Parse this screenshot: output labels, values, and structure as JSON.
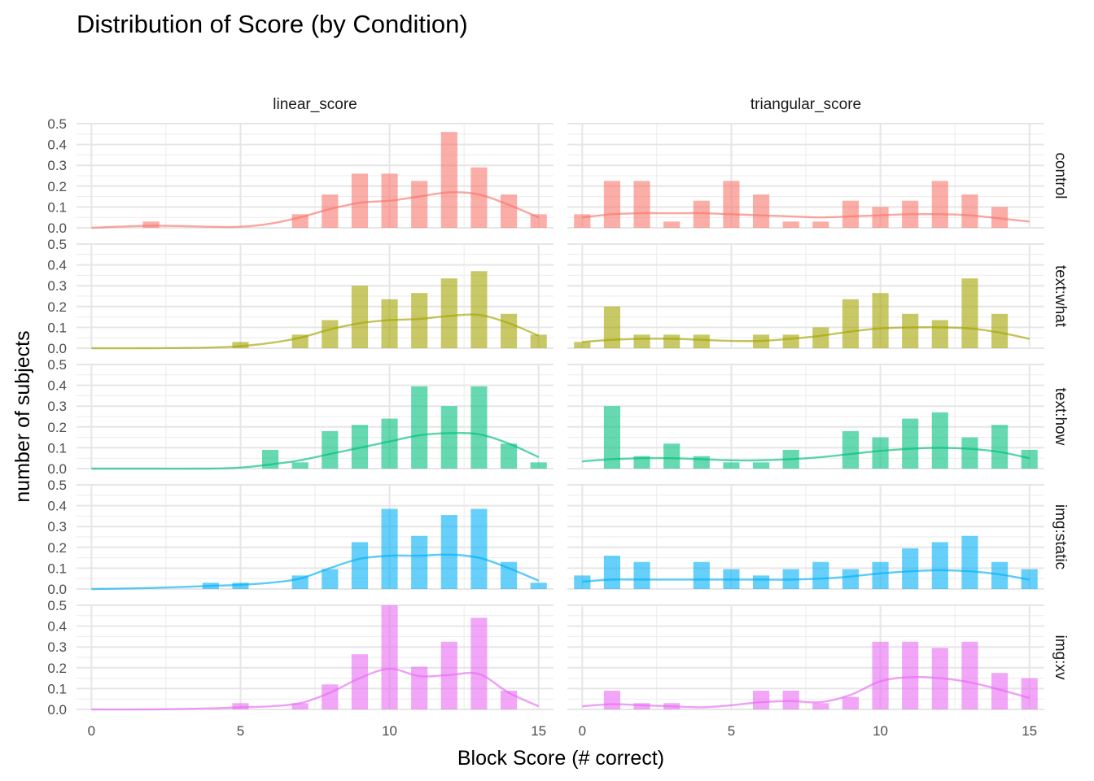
{
  "chart_data": {
    "type": "bar",
    "title": "Distribution of Score (by Condition)",
    "xlabel": "Block Score (# correct)",
    "ylabel": "number of subjects",
    "xlim": [
      -0.5,
      15.5
    ],
    "ylim": [
      0,
      0.5
    ],
    "x_ticks": [
      0,
      5,
      10,
      15
    ],
    "y_ticks": [
      0.0,
      0.1,
      0.2,
      0.3,
      0.4,
      0.5
    ],
    "y_tick_labels": [
      "0.0",
      "0.1",
      "0.2",
      "0.3",
      "0.4",
      "0.5"
    ],
    "grid": true,
    "columns": [
      "linear_score",
      "triangular_score"
    ],
    "rows": [
      "control",
      "text:what",
      "text:how",
      "img:static",
      "img:xv"
    ],
    "colors": {
      "control": "#F8766D",
      "text:what": "#A3A500",
      "text:how": "#00BF7D",
      "img:static": "#00B0F6",
      "img:xv": "#E76BF3"
    },
    "panels": [
      {
        "row": "control",
        "column": "linear_score",
        "bars": [
          [
            2,
            0.03
          ],
          [
            7,
            0.065
          ],
          [
            8,
            0.16
          ],
          [
            9,
            0.26
          ],
          [
            10,
            0.26
          ],
          [
            11,
            0.225
          ],
          [
            12,
            0.46
          ],
          [
            13,
            0.29
          ],
          [
            14,
            0.16
          ],
          [
            15,
            0.065
          ]
        ],
        "density": [
          [
            0,
            0.0
          ],
          [
            2,
            0.01
          ],
          [
            4,
            0.005
          ],
          [
            5,
            0.005
          ],
          [
            6,
            0.02
          ],
          [
            7,
            0.05
          ],
          [
            8,
            0.09
          ],
          [
            9,
            0.12
          ],
          [
            10,
            0.13
          ],
          [
            11,
            0.15
          ],
          [
            12,
            0.17
          ],
          [
            13,
            0.16
          ],
          [
            14,
            0.11
          ],
          [
            15,
            0.05
          ]
        ]
      },
      {
        "row": "control",
        "column": "triangular_score",
        "bars": [
          [
            0,
            0.065
          ],
          [
            1,
            0.225
          ],
          [
            2,
            0.225
          ],
          [
            3,
            0.03
          ],
          [
            4,
            0.13
          ],
          [
            5,
            0.225
          ],
          [
            6,
            0.16
          ],
          [
            7,
            0.03
          ],
          [
            8,
            0.03
          ],
          [
            9,
            0.13
          ],
          [
            10,
            0.1
          ],
          [
            11,
            0.13
          ],
          [
            12,
            0.225
          ],
          [
            13,
            0.16
          ],
          [
            14,
            0.1
          ]
        ],
        "density": [
          [
            0,
            0.05
          ],
          [
            1,
            0.065
          ],
          [
            2,
            0.07
          ],
          [
            3,
            0.07
          ],
          [
            4,
            0.07
          ],
          [
            5,
            0.065
          ],
          [
            6,
            0.06
          ],
          [
            7,
            0.055
          ],
          [
            8,
            0.05
          ],
          [
            9,
            0.055
          ],
          [
            10,
            0.06
          ],
          [
            11,
            0.065
          ],
          [
            12,
            0.065
          ],
          [
            13,
            0.06
          ],
          [
            14,
            0.045
          ],
          [
            15,
            0.03
          ]
        ]
      },
      {
        "row": "text:what",
        "column": "linear_score",
        "bars": [
          [
            5,
            0.03
          ],
          [
            7,
            0.065
          ],
          [
            8,
            0.135
          ],
          [
            9,
            0.3
          ],
          [
            10,
            0.235
          ],
          [
            11,
            0.265
          ],
          [
            12,
            0.335
          ],
          [
            13,
            0.37
          ],
          [
            14,
            0.165
          ],
          [
            15,
            0.065
          ]
        ],
        "density": [
          [
            0,
            0.0
          ],
          [
            2,
            0.0
          ],
          [
            4,
            0.003
          ],
          [
            5,
            0.01
          ],
          [
            6,
            0.025
          ],
          [
            7,
            0.05
          ],
          [
            8,
            0.09
          ],
          [
            9,
            0.12
          ],
          [
            10,
            0.135
          ],
          [
            11,
            0.14
          ],
          [
            12,
            0.155
          ],
          [
            13,
            0.16
          ],
          [
            14,
            0.12
          ],
          [
            15,
            0.06
          ]
        ]
      },
      {
        "row": "text:what",
        "column": "triangular_score",
        "bars": [
          [
            0,
            0.03
          ],
          [
            1,
            0.2
          ],
          [
            2,
            0.065
          ],
          [
            3,
            0.065
          ],
          [
            4,
            0.065
          ],
          [
            6,
            0.065
          ],
          [
            7,
            0.065
          ],
          [
            8,
            0.1
          ],
          [
            9,
            0.235
          ],
          [
            10,
            0.265
          ],
          [
            11,
            0.165
          ],
          [
            12,
            0.135
          ],
          [
            13,
            0.335
          ],
          [
            14,
            0.165
          ]
        ],
        "density": [
          [
            0,
            0.03
          ],
          [
            1,
            0.04
          ],
          [
            2,
            0.045
          ],
          [
            3,
            0.045
          ],
          [
            4,
            0.04
          ],
          [
            5,
            0.035
          ],
          [
            6,
            0.035
          ],
          [
            7,
            0.045
          ],
          [
            8,
            0.06
          ],
          [
            9,
            0.08
          ],
          [
            10,
            0.095
          ],
          [
            11,
            0.1
          ],
          [
            12,
            0.1
          ],
          [
            13,
            0.095
          ],
          [
            14,
            0.075
          ],
          [
            15,
            0.045
          ]
        ]
      },
      {
        "row": "text:how",
        "column": "linear_score",
        "bars": [
          [
            6,
            0.09
          ],
          [
            7,
            0.03
          ],
          [
            8,
            0.18
          ],
          [
            9,
            0.21
          ],
          [
            10,
            0.24
          ],
          [
            11,
            0.395
          ],
          [
            12,
            0.3
          ],
          [
            13,
            0.395
          ],
          [
            14,
            0.12
          ],
          [
            15,
            0.03
          ]
        ],
        "density": [
          [
            0,
            0.0
          ],
          [
            2,
            0.0
          ],
          [
            4,
            0.0
          ],
          [
            5,
            0.005
          ],
          [
            6,
            0.02
          ],
          [
            7,
            0.04
          ],
          [
            8,
            0.07
          ],
          [
            9,
            0.1
          ],
          [
            10,
            0.13
          ],
          [
            11,
            0.16
          ],
          [
            12,
            0.17
          ],
          [
            13,
            0.165
          ],
          [
            14,
            0.12
          ],
          [
            15,
            0.055
          ]
        ]
      },
      {
        "row": "text:how",
        "column": "triangular_score",
        "bars": [
          [
            1,
            0.3
          ],
          [
            2,
            0.06
          ],
          [
            3,
            0.12
          ],
          [
            4,
            0.06
          ],
          [
            5,
            0.03
          ],
          [
            6,
            0.03
          ],
          [
            7,
            0.09
          ],
          [
            9,
            0.18
          ],
          [
            10,
            0.15
          ],
          [
            11,
            0.24
          ],
          [
            12,
            0.27
          ],
          [
            13,
            0.15
          ],
          [
            14,
            0.21
          ],
          [
            15,
            0.09
          ]
        ],
        "density": [
          [
            0,
            0.035
          ],
          [
            1,
            0.045
          ],
          [
            2,
            0.05
          ],
          [
            3,
            0.05
          ],
          [
            4,
            0.045
          ],
          [
            5,
            0.04
          ],
          [
            6,
            0.04
          ],
          [
            7,
            0.045
          ],
          [
            8,
            0.055
          ],
          [
            9,
            0.07
          ],
          [
            10,
            0.085
          ],
          [
            11,
            0.095
          ],
          [
            12,
            0.1
          ],
          [
            13,
            0.095
          ],
          [
            14,
            0.08
          ],
          [
            15,
            0.05
          ]
        ]
      },
      {
        "row": "img:static",
        "column": "linear_score",
        "bars": [
          [
            4,
            0.03
          ],
          [
            5,
            0.03
          ],
          [
            7,
            0.065
          ],
          [
            8,
            0.095
          ],
          [
            9,
            0.225
          ],
          [
            10,
            0.385
          ],
          [
            11,
            0.255
          ],
          [
            12,
            0.355
          ],
          [
            13,
            0.385
          ],
          [
            14,
            0.13
          ],
          [
            15,
            0.03
          ]
        ],
        "density": [
          [
            0,
            0.0
          ],
          [
            2,
            0.005
          ],
          [
            4,
            0.015
          ],
          [
            5,
            0.02
          ],
          [
            6,
            0.03
          ],
          [
            7,
            0.05
          ],
          [
            8,
            0.1
          ],
          [
            9,
            0.145
          ],
          [
            10,
            0.16
          ],
          [
            11,
            0.16
          ],
          [
            12,
            0.165
          ],
          [
            13,
            0.15
          ],
          [
            14,
            0.1
          ],
          [
            15,
            0.04
          ]
        ]
      },
      {
        "row": "img:static",
        "column": "triangular_score",
        "bars": [
          [
            0,
            0.065
          ],
          [
            1,
            0.16
          ],
          [
            2,
            0.13
          ],
          [
            4,
            0.13
          ],
          [
            5,
            0.095
          ],
          [
            6,
            0.065
          ],
          [
            7,
            0.095
          ],
          [
            8,
            0.13
          ],
          [
            9,
            0.095
          ],
          [
            10,
            0.13
          ],
          [
            11,
            0.195
          ],
          [
            12,
            0.225
          ],
          [
            13,
            0.255
          ],
          [
            14,
            0.13
          ],
          [
            15,
            0.095
          ]
        ],
        "density": [
          [
            0,
            0.035
          ],
          [
            1,
            0.045
          ],
          [
            2,
            0.045
          ],
          [
            3,
            0.045
          ],
          [
            4,
            0.045
          ],
          [
            5,
            0.045
          ],
          [
            6,
            0.045
          ],
          [
            7,
            0.045
          ],
          [
            8,
            0.05
          ],
          [
            9,
            0.06
          ],
          [
            10,
            0.075
          ],
          [
            11,
            0.085
          ],
          [
            12,
            0.09
          ],
          [
            13,
            0.085
          ],
          [
            14,
            0.07
          ],
          [
            15,
            0.045
          ]
        ]
      },
      {
        "row": "img:xv",
        "column": "linear_score",
        "bars": [
          [
            5,
            0.03
          ],
          [
            7,
            0.03
          ],
          [
            8,
            0.12
          ],
          [
            9,
            0.265
          ],
          [
            10,
            0.5
          ],
          [
            11,
            0.205
          ],
          [
            12,
            0.325
          ],
          [
            13,
            0.44
          ],
          [
            14,
            0.09
          ]
        ],
        "density": [
          [
            0,
            0.0
          ],
          [
            2,
            0.0
          ],
          [
            4,
            0.005
          ],
          [
            5,
            0.01
          ],
          [
            6,
            0.015
          ],
          [
            7,
            0.03
          ],
          [
            8,
            0.08
          ],
          [
            9,
            0.15
          ],
          [
            10,
            0.195
          ],
          [
            11,
            0.16
          ],
          [
            12,
            0.165
          ],
          [
            13,
            0.17
          ],
          [
            14,
            0.08
          ],
          [
            15,
            0.015
          ]
        ]
      },
      {
        "row": "img:xv",
        "column": "triangular_score",
        "bars": [
          [
            1,
            0.09
          ],
          [
            2,
            0.03
          ],
          [
            3,
            0.03
          ],
          [
            6,
            0.09
          ],
          [
            7,
            0.09
          ],
          [
            8,
            0.03
          ],
          [
            9,
            0.06
          ],
          [
            10,
            0.325
          ],
          [
            11,
            0.325
          ],
          [
            12,
            0.295
          ],
          [
            13,
            0.325
          ],
          [
            14,
            0.175
          ],
          [
            15,
            0.15
          ]
        ],
        "density": [
          [
            0,
            0.015
          ],
          [
            1,
            0.025
          ],
          [
            2,
            0.02
          ],
          [
            3,
            0.015
          ],
          [
            4,
            0.01
          ],
          [
            5,
            0.02
          ],
          [
            6,
            0.035
          ],
          [
            7,
            0.04
          ],
          [
            8,
            0.035
          ],
          [
            9,
            0.07
          ],
          [
            10,
            0.135
          ],
          [
            11,
            0.155
          ],
          [
            12,
            0.15
          ],
          [
            13,
            0.13
          ],
          [
            14,
            0.095
          ],
          [
            15,
            0.055
          ]
        ]
      }
    ]
  }
}
